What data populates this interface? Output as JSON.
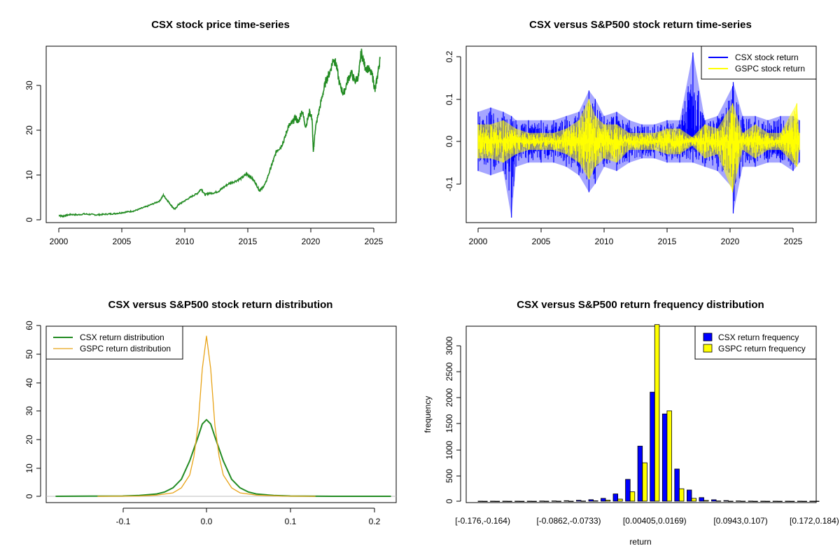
{
  "colors": {
    "csx_price": "#228B22",
    "csx_return": "#0000FF",
    "gspc_return": "#FFFF00",
    "csx_density": "#228B22",
    "gspc_density": "#E8A317",
    "axis": "#000000"
  },
  "chart_data": [
    {
      "type": "line",
      "title": "CSX stock price time-series",
      "xlabel": "",
      "ylabel": "",
      "xlim": [
        2000,
        2025.6
      ],
      "ylim": [
        0,
        38
      ],
      "x_ticks": [
        "2000",
        "2005",
        "2010",
        "2015",
        "2020",
        "2025"
      ],
      "y_ticks": [
        "0",
        "10",
        "20",
        "30"
      ],
      "grid": false,
      "series": [
        {
          "color": "#228B22",
          "x": [
            2000.0,
            2000.3,
            2000.6,
            2001.0,
            2001.5,
            2002.0,
            2002.5,
            2003.0,
            2003.5,
            2004.0,
            2004.5,
            2005.0,
            2005.5,
            2006.0,
            2006.5,
            2007.0,
            2007.5,
            2008.0,
            2008.3,
            2008.6,
            2008.9,
            2009.2,
            2009.5,
            2009.8,
            2010.2,
            2010.6,
            2011.0,
            2011.3,
            2011.6,
            2011.9,
            2012.3,
            2012.7,
            2013.0,
            2013.5,
            2014.0,
            2014.5,
            2014.9,
            2015.2,
            2015.6,
            2015.9,
            2016.1,
            2016.4,
            2016.8,
            2017.0,
            2017.3,
            2017.6,
            2017.9,
            2018.2,
            2018.5,
            2018.8,
            2019.0,
            2019.3,
            2019.6,
            2019.9,
            2020.1,
            2020.2,
            2020.35,
            2020.6,
            2020.9,
            2021.2,
            2021.5,
            2021.8,
            2022.0,
            2022.3,
            2022.6,
            2022.9,
            2023.2,
            2023.5,
            2023.8,
            2024.0,
            2024.3,
            2024.6,
            2024.9,
            2025.1,
            2025.3,
            2025.5
          ],
          "y": [
            1.0,
            0.8,
            1.0,
            1.2,
            1.1,
            1.3,
            1.2,
            1.1,
            1.2,
            1.3,
            1.4,
            1.6,
            1.8,
            2.0,
            2.5,
            3.0,
            3.6,
            4.2,
            5.5,
            4.4,
            3.3,
            2.3,
            3.4,
            3.9,
            4.6,
            5.3,
            5.9,
            6.9,
            5.6,
            5.9,
            6.0,
            6.4,
            7.1,
            8.1,
            8.6,
            9.3,
            10.2,
            9.7,
            8.3,
            6.6,
            6.9,
            8.1,
            11.4,
            13.0,
            15.5,
            16.2,
            17.9,
            20.8,
            21.5,
            22.9,
            21.7,
            24.4,
            20.8,
            24.1,
            22.6,
            15.0,
            20.2,
            23.6,
            27.5,
            31.0,
            32.9,
            35.9,
            34.8,
            30.1,
            28.1,
            30.9,
            32.9,
            30.9,
            32.1,
            37.5,
            34.2,
            33.5,
            32.1,
            28.8,
            32.3,
            36.0
          ]
        }
      ]
    },
    {
      "type": "line",
      "title": "CSX versus S&P500 stock return time-series",
      "xlabel": "",
      "ylabel": "",
      "xlim": [
        2000,
        2025.6
      ],
      "ylim": [
        -0.18,
        0.21
      ],
      "x_ticks": [
        "2000",
        "2005",
        "2010",
        "2015",
        "2020",
        "2025"
      ],
      "y_ticks": [
        "-0.1",
        "0.0",
        "0.1",
        "0.2"
      ],
      "legend": "top-right",
      "grid": false,
      "series": [
        {
          "name": "CSX stock return",
          "color": "#0000FF",
          "x": [
            2000.0,
            2001.0,
            2002.0,
            2002.65,
            2003.0,
            2004.0,
            2005.0,
            2006.0,
            2007.0,
            2008.0,
            2008.8,
            2009.3,
            2010.0,
            2011.0,
            2012.0,
            2013.0,
            2014.0,
            2015.0,
            2016.0,
            2017.05,
            2018.0,
            2019.0,
            2020.2,
            2020.25,
            2021.0,
            2022.0,
            2023.0,
            2024.0,
            2025.0,
            2025.5
          ],
          "upper": [
            0.07,
            0.08,
            0.07,
            0.06,
            0.05,
            0.05,
            0.05,
            0.05,
            0.06,
            0.07,
            0.12,
            0.1,
            0.06,
            0.07,
            0.05,
            0.04,
            0.04,
            0.05,
            0.05,
            0.21,
            0.05,
            0.06,
            0.13,
            0.14,
            0.06,
            0.06,
            0.05,
            0.06,
            0.06,
            0.05
          ],
          "lower": [
            -0.07,
            -0.08,
            -0.07,
            -0.18,
            -0.06,
            -0.05,
            -0.05,
            -0.05,
            -0.06,
            -0.08,
            -0.12,
            -0.1,
            -0.06,
            -0.07,
            -0.05,
            -0.04,
            -0.04,
            -0.05,
            -0.05,
            -0.05,
            -0.06,
            -0.07,
            -0.11,
            -0.17,
            -0.06,
            -0.06,
            -0.05,
            -0.05,
            -0.07,
            -0.05
          ]
        },
        {
          "name": "GSPC stock return",
          "color": "#FFFF00",
          "x": [
            2000.0,
            2001.0,
            2002.0,
            2003.0,
            2004.0,
            2005.0,
            2006.0,
            2007.0,
            2008.0,
            2008.8,
            2009.3,
            2010.0,
            2011.0,
            2012.0,
            2013.0,
            2014.0,
            2015.0,
            2016.0,
            2017.0,
            2018.0,
            2019.0,
            2020.2,
            2021.0,
            2022.0,
            2023.0,
            2024.0,
            2025.3,
            2025.5
          ],
          "upper": [
            0.04,
            0.04,
            0.05,
            0.03,
            0.02,
            0.02,
            0.02,
            0.03,
            0.05,
            0.1,
            0.06,
            0.04,
            0.04,
            0.02,
            0.02,
            0.02,
            0.03,
            0.03,
            0.01,
            0.04,
            0.03,
            0.09,
            0.02,
            0.04,
            0.02,
            0.02,
            0.09,
            0.02
          ],
          "lower": [
            -0.04,
            -0.04,
            -0.05,
            -0.03,
            -0.02,
            -0.02,
            -0.02,
            -0.03,
            -0.05,
            -0.09,
            -0.06,
            -0.04,
            -0.05,
            -0.02,
            -0.02,
            -0.02,
            -0.03,
            -0.03,
            -0.01,
            -0.04,
            -0.03,
            -0.12,
            -0.02,
            -0.04,
            -0.02,
            -0.02,
            -0.06,
            -0.02
          ]
        }
      ]
    },
    {
      "type": "line",
      "title": "CSX versus S&P500 stock return distribution",
      "xlabel": "",
      "ylabel": "",
      "xlim": [
        -0.19,
        0.225
      ],
      "ylim": [
        0,
        60
      ],
      "x_ticks": [
        "-0.1",
        "0.0",
        "0.1",
        "0.2"
      ],
      "y_ticks": [
        "0",
        "10",
        "20",
        "30",
        "40",
        "50",
        "60"
      ],
      "legend": "top-left",
      "grid": false,
      "series": [
        {
          "name": "CSX return distribution",
          "color": "#228B22",
          "x": [
            -0.18,
            -0.1,
            -0.08,
            -0.06,
            -0.05,
            -0.04,
            -0.03,
            -0.02,
            -0.01,
            -0.005,
            0.0,
            0.005,
            0.01,
            0.02,
            0.03,
            0.04,
            0.05,
            0.06,
            0.08,
            0.1,
            0.15,
            0.22
          ],
          "y": [
            0.0,
            0.1,
            0.3,
            0.8,
            1.5,
            3.0,
            6.0,
            12.5,
            21.0,
            25.5,
            27.0,
            25.5,
            21.0,
            12.5,
            6.0,
            3.0,
            1.5,
            0.8,
            0.3,
            0.1,
            0.0,
            0.0
          ]
        },
        {
          "name": "GSPC return distribution",
          "color": "#E8A317",
          "x": [
            -0.13,
            -0.08,
            -0.06,
            -0.04,
            -0.03,
            -0.02,
            -0.015,
            -0.01,
            -0.005,
            0.0,
            0.005,
            0.01,
            0.015,
            0.02,
            0.03,
            0.04,
            0.06,
            0.09,
            0.13
          ],
          "y": [
            0.0,
            0.1,
            0.4,
            1.2,
            3.0,
            7.5,
            14.0,
            25.0,
            45.0,
            56.5,
            45.0,
            25.0,
            14.0,
            7.5,
            3.0,
            1.2,
            0.4,
            0.1,
            0.0
          ]
        }
      ]
    },
    {
      "type": "bar",
      "title": "CSX versus S&P500 return frequency distribution",
      "xlabel": "return",
      "ylabel": "frequency",
      "ylim": [
        0,
        3400
      ],
      "y_ticks": [
        "0",
        "500",
        "1000",
        "1500",
        "2000",
        "2500",
        "3000"
      ],
      "legend": "top-right",
      "grid": false,
      "x_tick_labels": [
        "[-0.176,-0.164)",
        "[-0.0862,-0.0733)",
        "[0.00405,0.0169)",
        "[0.0943,0.107)",
        "[0.172,0.184)"
      ],
      "x_tick_label_bins": [
        0,
        7,
        14,
        21,
        27
      ],
      "series": [
        {
          "name": "CSX return frequency",
          "color": "#0000FF",
          "values": [
            1,
            1,
            1,
            2,
            2,
            4,
            6,
            10,
            18,
            30,
            55,
            140,
            420,
            1060,
            2100,
            1680,
            620,
            215,
            70,
            28,
            12,
            6,
            3,
            2,
            1,
            1,
            1,
            1
          ]
        },
        {
          "name": "GSPC return frequency",
          "color": "#FFFF00",
          "values": [
            0,
            0,
            0,
            0,
            0,
            1,
            1,
            2,
            4,
            8,
            20,
            40,
            180,
            740,
            3400,
            1740,
            240,
            55,
            15,
            5,
            2,
            1,
            0,
            0,
            0,
            0,
            0,
            1
          ]
        }
      ]
    }
  ]
}
